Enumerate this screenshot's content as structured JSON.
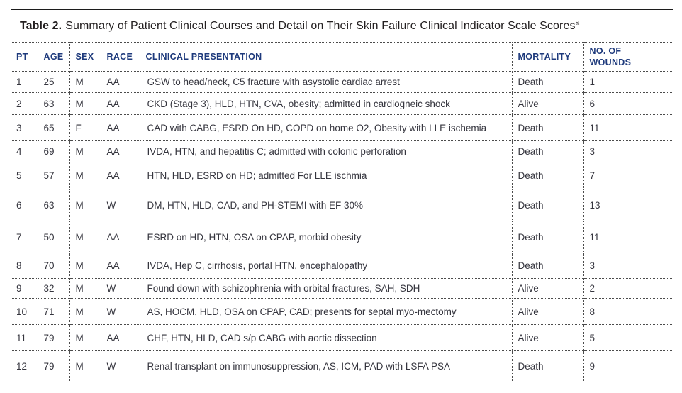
{
  "title": {
    "label": "Table 2.",
    "text": "Summary of Patient Clinical Courses and Detail on Their Skin Failure Clinical Indicator Scale Scores",
    "footnote_marker": "a"
  },
  "table": {
    "columns": [
      {
        "key": "pt",
        "label": "PT"
      },
      {
        "key": "age",
        "label": "AGE"
      },
      {
        "key": "sex",
        "label": "SEX"
      },
      {
        "key": "race",
        "label": "RACE"
      },
      {
        "key": "clinical_presentation",
        "label": "CLINICAL PRESENTATION"
      },
      {
        "key": "mortality",
        "label": "MORTALITY"
      },
      {
        "key": "no_of_wounds",
        "label": "NO. OF WOUNDS"
      }
    ],
    "rows": [
      {
        "pt": "1",
        "age": "25",
        "sex": "M",
        "race": "AA",
        "clinical_presentation": "GSW to head/neck, C5 fracture with asystolic cardiac arrest",
        "mortality": "Death",
        "no_of_wounds": "1"
      },
      {
        "pt": "2",
        "age": "63",
        "sex": "M",
        "race": "AA",
        "clinical_presentation": "CKD (Stage 3), HLD, HTN, CVA, obesity; admitted in cardiogneic shock",
        "mortality": "Alive",
        "no_of_wounds": "6"
      },
      {
        "pt": "3",
        "age": "65",
        "sex": "F",
        "race": "AA",
        "clinical_presentation": "CAD with CABG, ESRD On HD, COPD on home O2, Obesity with LLE ischemia",
        "mortality": "Death",
        "no_of_wounds": "11"
      },
      {
        "pt": "4",
        "age": "69",
        "sex": "M",
        "race": "AA",
        "clinical_presentation": "IVDA, HTN, and hepatitis C; admitted with colonic perforation",
        "mortality": "Death",
        "no_of_wounds": "3"
      },
      {
        "pt": "5",
        "age": "57",
        "sex": "M",
        "race": "AA",
        "clinical_presentation": "HTN, HLD, ESRD on HD; admitted For LLE ischmia",
        "mortality": "Death",
        "no_of_wounds": "7"
      },
      {
        "pt": "6",
        "age": "63",
        "sex": "M",
        "race": "W",
        "clinical_presentation": "DM, HTN, HLD, CAD, and PH-STEMI with EF 30%",
        "mortality": "Death",
        "no_of_wounds": "13"
      },
      {
        "pt": "7",
        "age": "50",
        "sex": "M",
        "race": "AA",
        "clinical_presentation": "ESRD on HD, HTN, OSA on CPAP, morbid obesity",
        "mortality": "Death",
        "no_of_wounds": "11"
      },
      {
        "pt": "8",
        "age": "70",
        "sex": "M",
        "race": "AA",
        "clinical_presentation": "IVDA, Hep C, cirrhosis, portal HTN, encephalopathy",
        "mortality": "Death",
        "no_of_wounds": "3"
      },
      {
        "pt": "9",
        "age": "32",
        "sex": "M",
        "race": "W",
        "clinical_presentation": "Found down with schizophrenia with orbital fractures, SAH, SDH",
        "mortality": "Alive",
        "no_of_wounds": "2"
      },
      {
        "pt": "10",
        "age": "71",
        "sex": "M",
        "race": "W",
        "clinical_presentation": "AS, HOCM, HLD, OSA on CPAP, CAD; presents for septal myo-mectomy",
        "mortality": "Alive",
        "no_of_wounds": "8"
      },
      {
        "pt": "11",
        "age": "79",
        "sex": "M",
        "race": "AA",
        "clinical_presentation": "CHF, HTN, HLD, CAD s/p CABG with aortic dissection",
        "mortality": "Alive",
        "no_of_wounds": "5"
      },
      {
        "pt": "12",
        "age": "79",
        "sex": "M",
        "race": "W",
        "clinical_presentation": "Renal transplant on immunosuppression, AS, ICM, PAD with LSFA PSA",
        "mortality": "Death",
        "no_of_wounds": "9"
      }
    ]
  },
  "colors": {
    "title_text": "#231f20",
    "header_text": "#1e3a7c",
    "body_text": "#35353e",
    "divider": "#4b4b4b",
    "rule": "#1c1c1c"
  }
}
